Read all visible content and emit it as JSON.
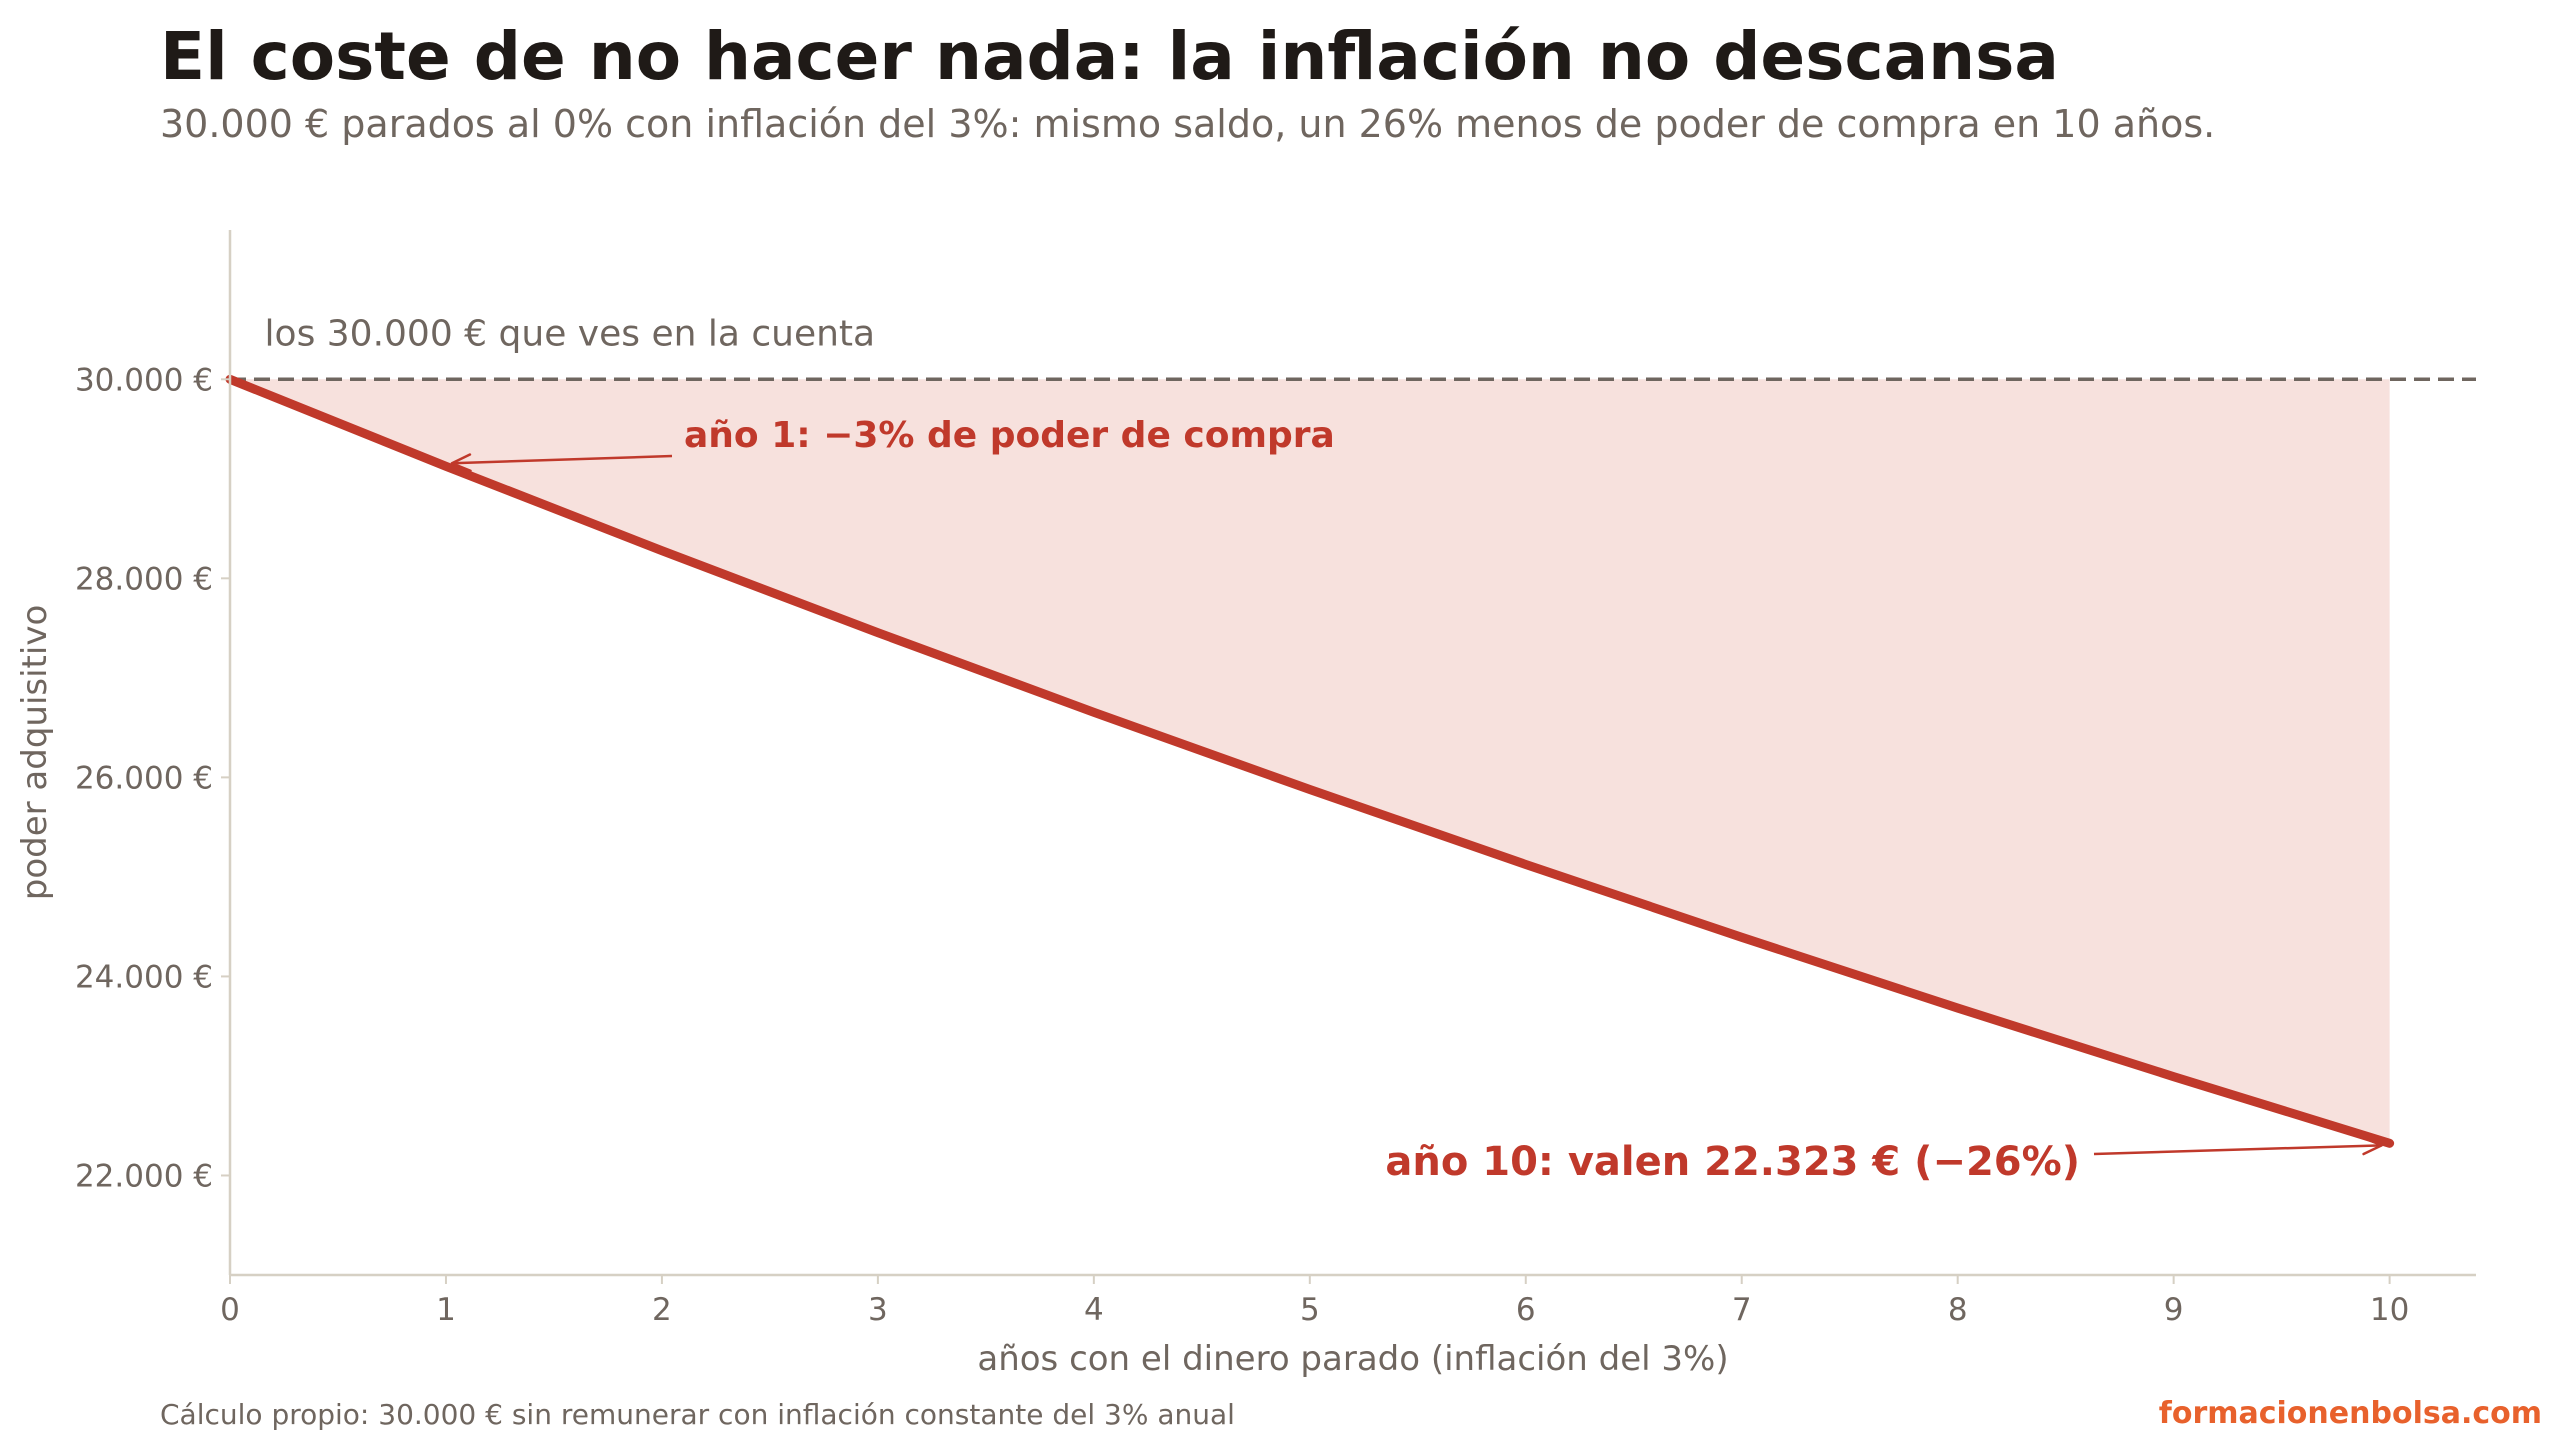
{
  "header": {
    "title": "El coste de no hacer nada: la inflación no descansa",
    "subtitle": "30.000 € parados al 0% con inflación del 3%: mismo saldo, un 26% menos de poder de compra en 10 años."
  },
  "footer": {
    "source": "Cálculo propio: 30.000 € sin remunerar con inflación constante del 3% anual",
    "brand": "formacionenbolsa.com"
  },
  "colors": {
    "line": "#c0392b",
    "fill": "#f7e1dd",
    "reference": "#6f665f",
    "axis": "#d6d0c4",
    "text": "#6f665f",
    "brand": "#e8612c"
  },
  "chart_data": {
    "type": "area",
    "xlabel": "años con el dinero parado (inflación del 3%)",
    "ylabel": "poder adquisitivo",
    "x": [
      0,
      1,
      2,
      3,
      4,
      5,
      6,
      7,
      8,
      9,
      10
    ],
    "series": [
      {
        "values": [
          30000,
          29126,
          28278,
          27454,
          26654,
          25878,
          25125,
          24393,
          23682,
          22993,
          22323
        ]
      }
    ],
    "xlim": [
      0,
      10.4
    ],
    "ylim": [
      21000,
      31500
    ],
    "xticks": [
      "0",
      "1",
      "2",
      "3",
      "4",
      "5",
      "6",
      "7",
      "8",
      "9",
      "10"
    ],
    "yticks": [
      {
        "value": 22000,
        "label": "22.000 €"
      },
      {
        "value": 24000,
        "label": "24.000 €"
      },
      {
        "value": 26000,
        "label": "26.000 €"
      },
      {
        "value": 28000,
        "label": "28.000 €"
      },
      {
        "value": 30000,
        "label": "30.000 €"
      }
    ],
    "reference_line": {
      "value": 30000,
      "label": "los 30.000 € que ves en la cuenta"
    },
    "annotations": [
      {
        "text": "año 1: −3% de poder de compra",
        "x": 1,
        "y": 29126
      },
      {
        "text": "año 10: valen 22.323 € (−26%)",
        "x": 10,
        "y": 22323
      }
    ],
    "grid": false
  }
}
